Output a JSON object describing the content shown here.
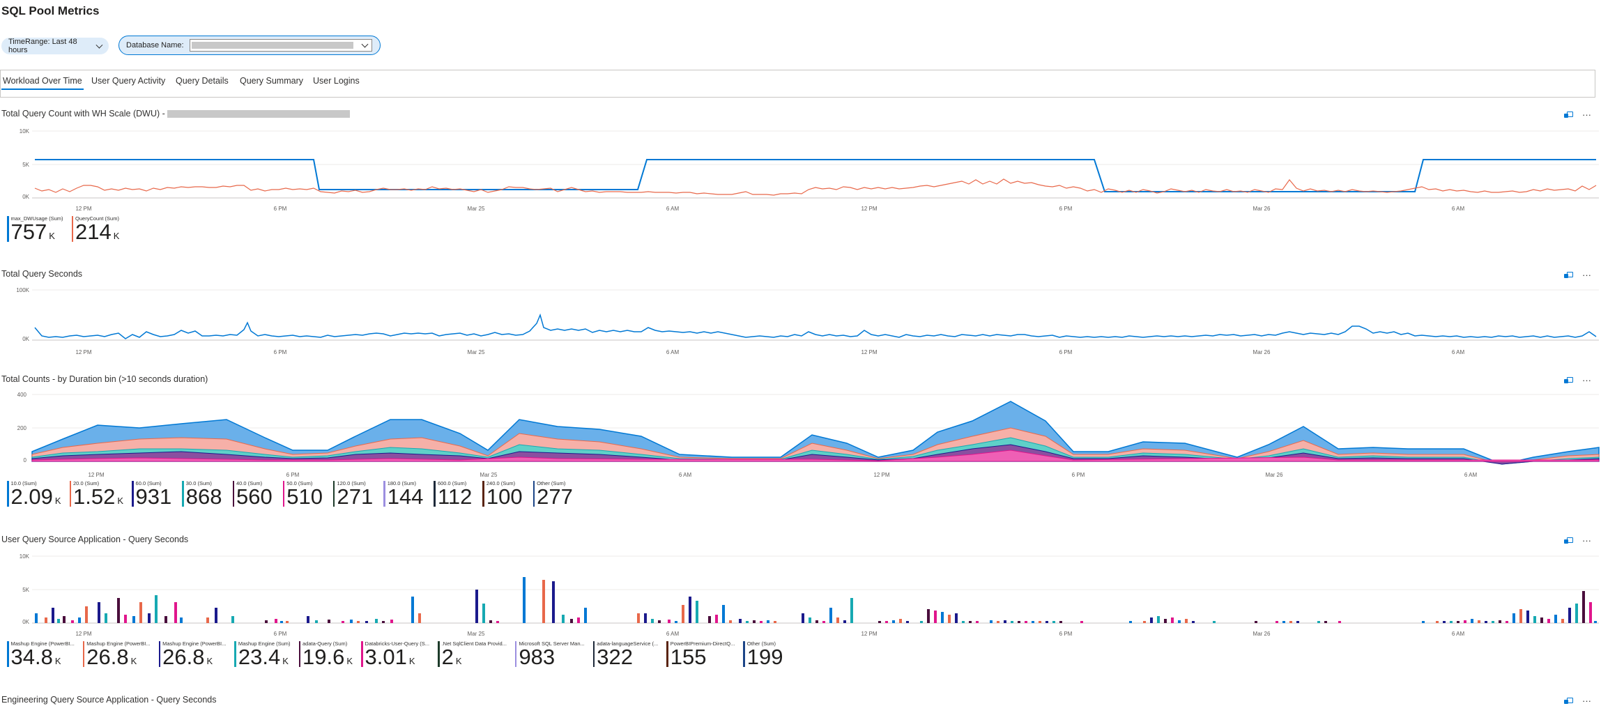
{
  "page": {
    "title": "SQL Pool Metrics"
  },
  "filters": {
    "timerange": "TimeRange: Last 48 hours",
    "database_label": "Database Name:"
  },
  "tabs": [
    "Workload Over Time",
    "User Query Activity",
    "Query Details",
    "Query Summary",
    "User Logins"
  ],
  "x_ticks": [
    "12 PM",
    "6 PM",
    "Mar 25",
    "6 AM",
    "12 PM",
    "6 PM",
    "Mar 26",
    "6 AM"
  ],
  "icons": {
    "pin": "pin-to-dashboard-icon",
    "more": "more-options-icon",
    "chevron": "chevron-down-icon"
  },
  "more_glyph": "···",
  "sections": [
    {
      "title": "Total Query Count with WH Scale (DWU) -",
      "y_ticks": [
        "10K",
        "5K",
        "0K"
      ],
      "legend": [
        {
          "name": "max_DWUsage (Sum)",
          "value": "757",
          "unit": "K",
          "color": "#0078d4"
        },
        {
          "name": "QueryCount (Sum)",
          "value": "214",
          "unit": "K",
          "color": "#e8684a"
        }
      ]
    },
    {
      "title": "Total Query Seconds",
      "y_ticks": [
        "100K",
        "0K"
      ],
      "legend": []
    },
    {
      "title": "Total Counts - by Duration bin (>10 seconds duration)",
      "y_ticks": [
        "400",
        "200",
        "0"
      ],
      "legend": [
        {
          "name": "10.0 (Sum)",
          "value": "2.09",
          "unit": "K",
          "color": "#0078d4"
        },
        {
          "name": "20.0 (Sum)",
          "value": "1.52",
          "unit": "K",
          "color": "#e8684a"
        },
        {
          "name": "60.0 (Sum)",
          "value": "931",
          "unit": "",
          "color": "#1b1a8c"
        },
        {
          "name": "30.0 (Sum)",
          "value": "868",
          "unit": "",
          "color": "#17a9b2"
        },
        {
          "name": "40.0 (Sum)",
          "value": "560",
          "unit": "",
          "color": "#4a0e3c"
        },
        {
          "name": "50.0 (Sum)",
          "value": "510",
          "unit": "",
          "color": "#e0168c"
        },
        {
          "name": "120.0 (Sum)",
          "value": "271",
          "unit": "",
          "color": "#1d3b2a"
        },
        {
          "name": "180.0 (Sum)",
          "value": "144",
          "unit": "",
          "color": "#9c8fe0"
        },
        {
          "name": "600.0 (Sum)",
          "value": "112",
          "unit": "",
          "color": "#1e2a3a"
        },
        {
          "name": "240.0 (Sum)",
          "value": "100",
          "unit": "",
          "color": "#5a2410"
        },
        {
          "name": "Other (Sum)",
          "value": "277",
          "unit": "",
          "color": "#1c4587"
        }
      ]
    },
    {
      "title": "User Query Source Application - Query Seconds",
      "y_ticks": [
        "10K",
        "5K",
        "0K"
      ],
      "legend": [
        {
          "name": "Mashup Engine (PowerBI...",
          "value": "34.8",
          "unit": "K",
          "color": "#0078d4"
        },
        {
          "name": "Mashup Engine (PowerBI...",
          "value": "26.8",
          "unit": "K",
          "color": "#e8684a"
        },
        {
          "name": "Mashup Engine (PowerBI...",
          "value": "26.8",
          "unit": "K",
          "color": "#1b1a8c"
        },
        {
          "name": "Mashup Engine (Sum)",
          "value": "23.4",
          "unit": "K",
          "color": "#17a9b2"
        },
        {
          "name": "adata-Query (Sum)",
          "value": "19.6",
          "unit": "K",
          "color": "#4a0e3c"
        },
        {
          "name": "Databricks-User-Query (S...",
          "value": "3.01",
          "unit": "K",
          "color": "#e0168c"
        },
        {
          "name": ".Net SqlClient Data Provid...",
          "value": "2",
          "unit": "K",
          "color": "#1d3b2a"
        },
        {
          "name": "Microsoft SQL Server Man...",
          "value": "983",
          "unit": "",
          "color": "#9c8fe0"
        },
        {
          "name": "adata-languageService (...",
          "value": "322",
          "unit": "",
          "color": "#1e2a3a"
        },
        {
          "name": "PowerBIPremium-DirectQ...",
          "value": "155",
          "unit": "",
          "color": "#5a2410"
        },
        {
          "name": "Other (Sum)",
          "value": "199",
          "unit": "",
          "color": "#1c4587"
        }
      ]
    },
    {
      "title": "Engineering Query Source Application - Query Seconds",
      "y_ticks": [],
      "legend": []
    }
  ],
  "chart_data": [
    {
      "type": "line",
      "title": "Total Query Count with WH Scale (DWU) -",
      "ylim": [
        0,
        10000
      ],
      "series": [
        {
          "name": "max_DWUsage (Sum)",
          "values": [
            6000,
            6000,
            1000,
            6000,
            6000,
            1000,
            1000,
            6000,
            6000
          ]
        },
        {
          "name": "QueryCount (Sum)",
          "values": [
            1200,
            1400,
            900,
            1300,
            700,
            1500,
            1100,
            900,
            600
          ]
        }
      ]
    },
    {
      "type": "line",
      "title": "Total Query Seconds",
      "ylim": [
        0,
        100000
      ],
      "series": [
        {
          "values": [
            20000,
            10000,
            15000,
            45000,
            8000,
            20000,
            15000,
            30000,
            12000
          ]
        }
      ]
    },
    {
      "type": "area",
      "title": "Total Counts - by Duration bin (>10 seconds duration)",
      "ylim": [
        0,
        400
      ],
      "series": [
        {
          "name": "10.0 (Sum)",
          "values": [
            70,
            230,
            250,
            90,
            270,
            120,
            260,
            60,
            380,
            80,
            220,
            70,
            80
          ]
        },
        {
          "name": "20.0 (Sum)",
          "values": [
            50,
            150,
            170,
            60,
            180,
            80,
            170,
            40,
            230,
            50,
            130,
            50,
            50
          ]
        },
        {
          "name": "30.0 (Sum)",
          "values": [
            30,
            90,
            100,
            40,
            100,
            50,
            100,
            20,
            150,
            30,
            80,
            30,
            30
          ]
        },
        {
          "name": "60.0 (Sum)",
          "values": [
            20,
            60,
            70,
            25,
            70,
            35,
            70,
            15,
            120,
            20,
            60,
            20,
            20
          ]
        }
      ]
    },
    {
      "type": "bar",
      "title": "User Query Source Application - Query Seconds",
      "ylim": [
        0,
        10000
      ],
      "values": [
        1000,
        2500,
        3500,
        2800,
        1500,
        2000,
        800,
        600,
        3000,
        5500,
        5000,
        2500,
        3500,
        3000,
        2500,
        4000
      ]
    }
  ]
}
